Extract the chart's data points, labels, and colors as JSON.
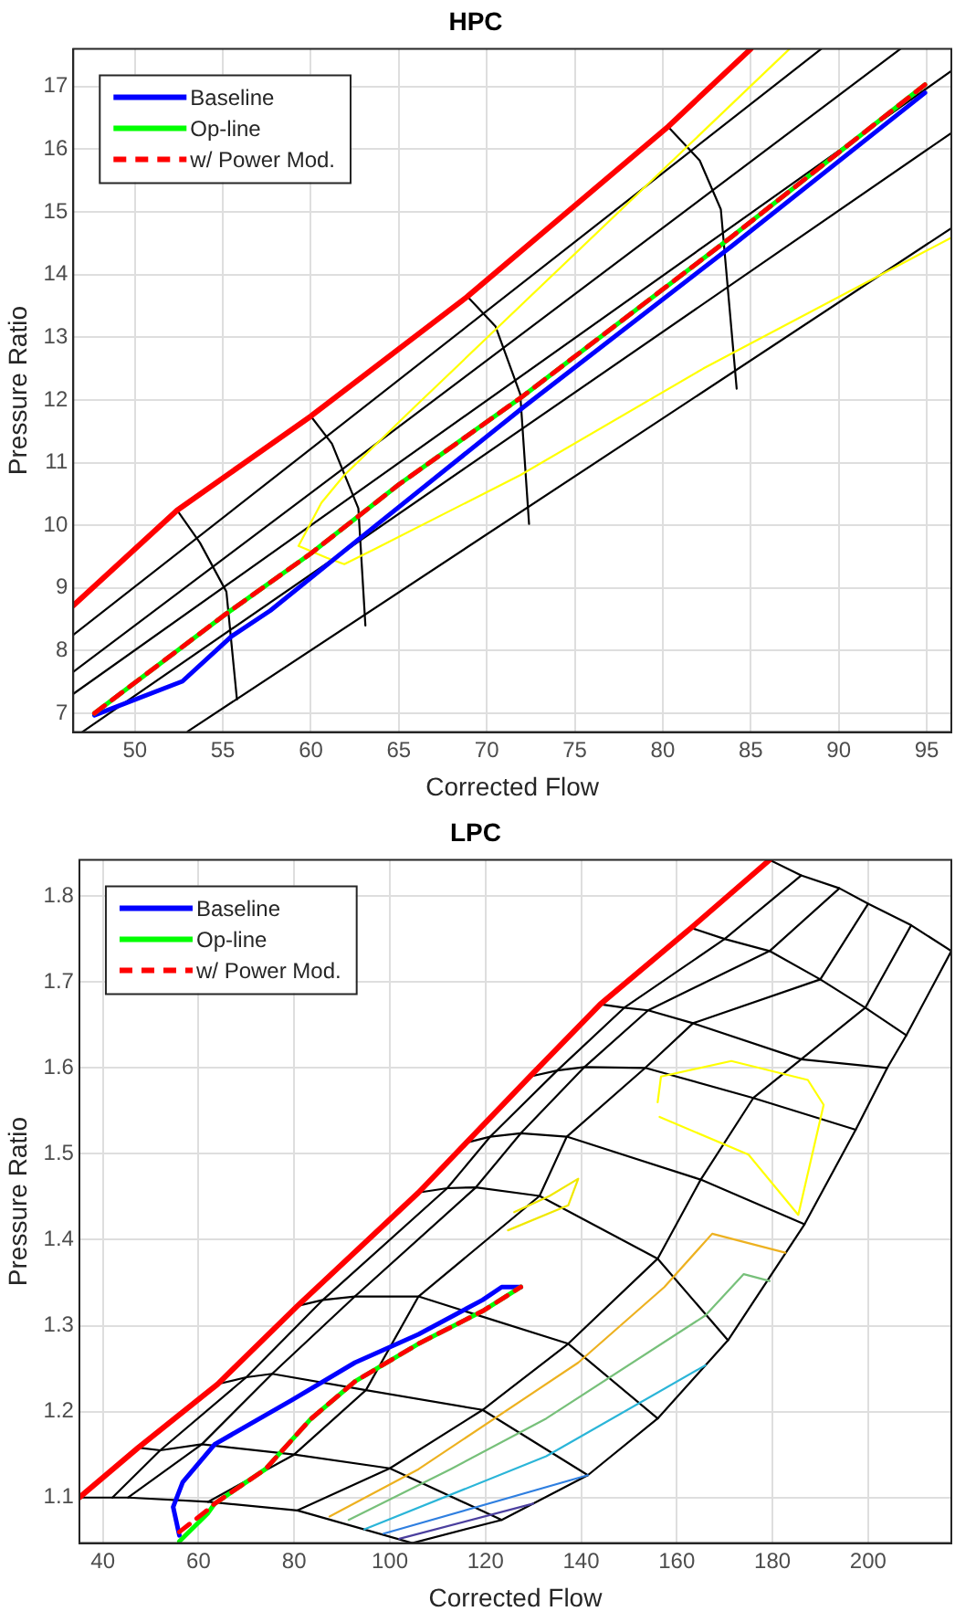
{
  "chart_data": [
    {
      "type": "line",
      "title": "HPC",
      "xlabel": "Corrected Flow",
      "ylabel": "Pressure Ratio",
      "xlim": [
        46.5,
        96.4
      ],
      "ylim": [
        6.7,
        17.6
      ],
      "xticks": [
        50,
        55,
        60,
        65,
        70,
        75,
        80,
        85,
        90,
        95
      ],
      "yticks": [
        7,
        8,
        9,
        10,
        11,
        12,
        13,
        14,
        15,
        16,
        17
      ],
      "grid": true,
      "legend": "top left",
      "marker": "none",
      "series": [
        {
          "color": "#000000",
          "x": [
            46.5,
            89.0
          ],
          "values": [
            8.25,
            17.6
          ]
        },
        {
          "color": "#000000",
          "x": [
            46.5,
            93.5
          ],
          "values": [
            7.66,
            17.6
          ]
        },
        {
          "color": "#000000",
          "x": [
            46.5,
            96.4
          ],
          "values": [
            7.31,
            17.25
          ]
        },
        {
          "color": "#000000",
          "x": [
            47.0,
            96.4
          ],
          "values": [
            6.7,
            16.26
          ]
        },
        {
          "color": "#000000",
          "x": [
            53.0,
            96.4
          ],
          "values": [
            6.71,
            14.74
          ]
        },
        {
          "color": "#000000",
          "x": [
            52.4,
            53.7,
            55.2,
            55.8
          ],
          "values": [
            10.24,
            9.72,
            8.94,
            7.22
          ]
        },
        {
          "color": "#000000",
          "x": [
            60.0,
            61.2,
            62.7,
            63.1
          ],
          "values": [
            11.74,
            11.3,
            10.27,
            8.4
          ]
        },
        {
          "color": "#000000",
          "x": [
            68.9,
            70.5,
            71.9,
            72.4
          ],
          "values": [
            13.65,
            13.17,
            12.09,
            10.02
          ]
        },
        {
          "color": "#000000",
          "x": [
            80.3,
            82.1,
            83.3,
            84.2
          ],
          "values": [
            16.36,
            15.82,
            15.04,
            12.18
          ]
        },
        {
          "color": "#ffff00",
          "x": [
            87.2,
            65.9,
            61.9,
            60.6,
            59.3,
            60.9,
            61.9,
            63.7,
            71.9,
            82.3,
            96.4
          ],
          "values": [
            17.6,
            11.89,
            10.8,
            10.36,
            9.67,
            9.48,
            9.38,
            9.63,
            10.8,
            12.5,
            14.59
          ]
        },
        {
          "color": "#ff0000",
          "x": [
            46.5,
            52.4,
            60.0,
            68.9,
            80.3,
            85.0
          ],
          "values": [
            8.72,
            10.24,
            11.74,
            13.65,
            16.36,
            17.6
          ]
        },
        {
          "name": "Baseline",
          "color": "#0000ff",
          "x": [
            47.7,
            52.7,
            55.5,
            57.7,
            63.0,
            72.1,
            83.9,
            94.9
          ],
          "values": [
            6.97,
            7.51,
            8.23,
            8.64,
            9.84,
            11.89,
            14.45,
            16.9
          ]
        },
        {
          "name": "Op-line",
          "color": "#00ff00",
          "x": [
            47.7,
            55.0,
            60.0,
            65.0,
            72.0,
            83.9,
            94.9
          ],
          "values": [
            7.0,
            8.55,
            9.55,
            10.65,
            12.05,
            14.6,
            17.03
          ]
        },
        {
          "name": "w/ Power Mod.",
          "color": "#ff0000",
          "line_style": "dashed",
          "x": [
            47.7,
            55.0,
            60.0,
            65.0,
            72.0,
            83.9,
            94.9
          ],
          "values": [
            7.0,
            8.55,
            9.55,
            10.65,
            12.05,
            14.6,
            17.03
          ]
        }
      ]
    },
    {
      "type": "line",
      "title": "LPC",
      "xlabel": "Corrected Flow",
      "ylabel": "Pressure Ratio",
      "xlim": [
        35.1,
        217.4
      ],
      "ylim": [
        1.047,
        1.842
      ],
      "xticks": [
        40,
        60,
        80,
        100,
        120,
        140,
        160,
        180,
        200
      ],
      "yticks": [
        1.1,
        1.2,
        1.3,
        1.4,
        1.5,
        1.6,
        1.7,
        1.8
      ],
      "grid": true,
      "legend": "top left",
      "marker": "none",
      "series": [
        {
          "color": "#000000",
          "x": [
            35.1,
            42,
            45.3,
            62,
            80.7,
            104.7
          ],
          "values": [
            1.1,
            1.1,
            1.1,
            1.095,
            1.085,
            1.047
          ]
        },
        {
          "color": "#000000",
          "x": [
            47.4,
            52,
            60.7,
            80,
            100,
            123.4
          ],
          "values": [
            1.158,
            1.155,
            1.162,
            1.15,
            1.134,
            1.074
          ]
        },
        {
          "color": "#000000",
          "x": [
            64,
            70,
            75.4,
            95,
            119.4,
            141.4
          ],
          "values": [
            1.232,
            1.24,
            1.244,
            1.225,
            1.202,
            1.126
          ]
        },
        {
          "color": "#000000",
          "x": [
            80.7,
            86,
            92.7,
            106,
            137.3,
            156
          ],
          "values": [
            1.323,
            1.33,
            1.334,
            1.334,
            1.279,
            1.192
          ]
        },
        {
          "color": "#000000",
          "x": [
            106,
            112,
            118,
            131.3,
            156,
            170.7
          ],
          "values": [
            1.455,
            1.46,
            1.461,
            1.451,
            1.378,
            1.283
          ]
        },
        {
          "color": "#000000",
          "x": [
            116,
            121,
            127.4,
            137,
            165,
            186.7
          ],
          "values": [
            1.513,
            1.52,
            1.524,
            1.52,
            1.47,
            1.418
          ]
        },
        {
          "color": "#000000",
          "x": [
            129.3,
            135,
            140.7,
            153.4,
            176,
            197.4
          ],
          "values": [
            1.59,
            1.597,
            1.601,
            1.6,
            1.565,
            1.528
          ]
        },
        {
          "color": "#000000",
          "x": [
            144,
            149,
            154,
            163.4,
            186,
            204
          ],
          "values": [
            1.674,
            1.67,
            1.667,
            1.652,
            1.61,
            1.6
          ]
        },
        {
          "color": "#000000",
          "x": [
            163,
            170,
            179.4,
            190,
            199.4,
            208
          ],
          "values": [
            1.763,
            1.75,
            1.736,
            1.703,
            1.67,
            1.638
          ]
        },
        {
          "color": "#000000",
          "x": [
            179.4,
            186,
            194,
            200,
            209,
            217.4
          ],
          "values": [
            1.842,
            1.824,
            1.809,
            1.791,
            1.766,
            1.736
          ]
        },
        {
          "color": "#000000",
          "x": [
            42,
            52,
            70,
            86,
            112,
            121,
            135,
            149,
            170,
            186
          ],
          "values": [
            1.1,
            1.155,
            1.24,
            1.33,
            1.46,
            1.52,
            1.597,
            1.67,
            1.75,
            1.824
          ]
        },
        {
          "color": "#000000",
          "x": [
            45.3,
            60.7,
            75.4,
            92.7,
            118,
            127.4,
            140.7,
            154,
            179.4,
            194
          ],
          "values": [
            1.1,
            1.162,
            1.244,
            1.334,
            1.461,
            1.524,
            1.601,
            1.667,
            1.736,
            1.809
          ]
        },
        {
          "color": "#000000",
          "x": [
            62,
            80,
            95,
            106,
            131.3,
            137,
            153.4,
            163.4,
            190,
            200
          ],
          "values": [
            1.095,
            1.15,
            1.225,
            1.334,
            1.451,
            1.52,
            1.6,
            1.652,
            1.703,
            1.791
          ]
        },
        {
          "color": "#000000",
          "x": [
            80.7,
            100,
            119.4,
            137.3,
            156,
            165,
            176,
            186,
            199.4,
            209
          ],
          "values": [
            1.085,
            1.134,
            1.202,
            1.279,
            1.378,
            1.47,
            1.565,
            1.61,
            1.67,
            1.766
          ]
        },
        {
          "color": "#000000",
          "x": [
            104.7,
            123.4,
            141.4,
            156,
            170.7,
            186.7,
            197.4,
            204,
            208,
            217.4
          ],
          "values": [
            1.047,
            1.074,
            1.126,
            1.192,
            1.283,
            1.418,
            1.528,
            1.6,
            1.638,
            1.736
          ]
        },
        {
          "color": "#ffff00",
          "x": [
            156,
            156.7,
            171.4,
            187.4,
            190.7,
            185.4,
            175,
            156.4
          ],
          "values": [
            1.56,
            1.59,
            1.608,
            1.586,
            1.557,
            1.429,
            1.499,
            1.543
          ]
        },
        {
          "color": "#f0e800",
          "x": [
            124.7,
            137.3,
            139.4,
            133.4,
            126
          ],
          "values": [
            1.411,
            1.44,
            1.471,
            1.451,
            1.432
          ]
        },
        {
          "color": "#edb120",
          "x": [
            87.4,
            106,
            139.4,
            157.4,
            167.4,
            182.7
          ],
          "values": [
            1.078,
            1.133,
            1.257,
            1.345,
            1.407,
            1.385
          ]
        },
        {
          "color": "#77c07a",
          "x": [
            91.4,
            112.7,
            132.7,
            166,
            174,
            179.4
          ],
          "values": [
            1.074,
            1.133,
            1.192,
            1.312,
            1.36,
            1.352
          ]
        },
        {
          "color": "#2bb5d8",
          "x": [
            94.7,
            132.7,
            166
          ],
          "values": [
            1.063,
            1.148,
            1.254
          ]
        },
        {
          "color": "#2f7fe0",
          "x": [
            98.7,
            141.4
          ],
          "values": [
            1.058,
            1.126
          ]
        },
        {
          "color": "#4b3f9e",
          "x": [
            102,
            130
          ],
          "values": [
            1.052,
            1.093
          ]
        },
        {
          "color": "#ff0000",
          "x": [
            35.1,
            47.4,
            64,
            80.7,
            106,
            116,
            129.3,
            144,
            163,
            179.4
          ],
          "values": [
            1.1,
            1.158,
            1.232,
            1.323,
            1.455,
            1.513,
            1.59,
            1.674,
            1.763,
            1.842
          ]
        },
        {
          "name": "Baseline",
          "color": "#0000ff",
          "x": [
            56,
            54.7,
            56.7,
            63.4,
            79.4,
            92.7,
            106,
            119.4,
            123.4,
            127.4
          ],
          "values": [
            1.056,
            1.089,
            1.118,
            1.162,
            1.213,
            1.257,
            1.29,
            1.33,
            1.345,
            1.345
          ]
        },
        {
          "name": "Op-line",
          "color": "#00ff00",
          "x": [
            56,
            62,
            63.4,
            74,
            83.4,
            92.7,
            106,
            119.4,
            127.4
          ],
          "values": [
            1.049,
            1.082,
            1.093,
            1.133,
            1.191,
            1.235,
            1.279,
            1.317,
            1.345
          ]
        },
        {
          "name": "w/ Power Mod.",
          "color": "#ff0000",
          "line_style": "dashed",
          "x": [
            56,
            62,
            63.4,
            74,
            83.4,
            92.7,
            106,
            119.4,
            127.4
          ],
          "values": [
            1.06,
            1.086,
            1.093,
            1.133,
            1.191,
            1.235,
            1.279,
            1.317,
            1.345
          ]
        }
      ]
    }
  ]
}
